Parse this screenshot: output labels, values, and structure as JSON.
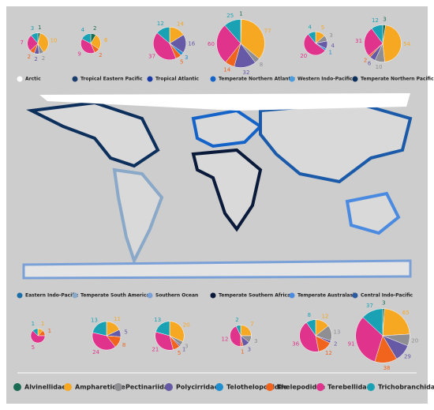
{
  "legend": {
    "names": [
      "Alvinellidae",
      "Ampharetidae",
      "Pectinariidae",
      "Polycirridae",
      "Telothelopodidae",
      "Thelepodidae",
      "Terebellidae",
      "Trichobranchidae"
    ],
    "colors": [
      "#1c6b55",
      "#f7a823",
      "#8e8e93",
      "#665aa6",
      "#1f8fd0",
      "#f0641e",
      "#e0348c",
      "#1aa2b4"
    ]
  },
  "chart_data": [
    {
      "type": "pie",
      "title": "Arctic",
      "region_color": "#ffffff",
      "values": [
        1,
        10,
        2,
        2,
        null,
        2,
        7,
        3
      ]
    },
    {
      "type": "pie",
      "title": "Tropical Eastern Pacific",
      "region_color": "#1b3d6e",
      "values": [
        2,
        6,
        null,
        null,
        null,
        2,
        9,
        4
      ]
    },
    {
      "type": "pie",
      "title": "Tropical Atlantic",
      "region_color": "#1a3aa8",
      "values": [
        null,
        14,
        null,
        16,
        3,
        5,
        37,
        12
      ]
    },
    {
      "type": "pie",
      "title": "Temperate Northern Atlantic",
      "region_color": "#1463c8",
      "values": [
        1,
        77,
        8,
        32,
        null,
        14,
        60,
        25
      ]
    },
    {
      "type": "pie",
      "title": "Western Indo-Pacific",
      "region_color": "#4a9be0",
      "values": [
        null,
        5,
        3,
        4,
        1,
        null,
        20,
        4
      ]
    },
    {
      "type": "pie",
      "title": "Temperate Northern Pacific",
      "region_color": "#0d2f5c",
      "values": [
        3,
        54,
        10,
        6,
        null,
        2,
        31,
        12
      ]
    },
    {
      "type": "pie",
      "title": "Eastern Indo-Pacific",
      "region_color": "#1a6fa8",
      "values": [
        null,
        1,
        null,
        null,
        null,
        1,
        5,
        1
      ]
    },
    {
      "type": "pie",
      "title": "Temperate South America",
      "region_color": "#8aa8c8",
      "values": [
        null,
        11,
        null,
        5,
        null,
        8,
        24,
        13
      ]
    },
    {
      "type": "pie",
      "title": "Southern Ocean",
      "region_color": "#7aa0d8",
      "values": [
        null,
        20,
        3,
        1,
        null,
        5,
        21,
        13
      ]
    },
    {
      "type": "pie",
      "title": "Temperate Southern Africa",
      "region_color": "#0a1a3a",
      "values": [
        null,
        7,
        3,
        3,
        null,
        1,
        12,
        2
      ]
    },
    {
      "type": "pie",
      "title": "Temperate Australasia",
      "region_color": "#4a8ae0",
      "values": [
        null,
        12,
        13,
        2,
        null,
        12,
        36,
        8
      ]
    },
    {
      "type": "pie",
      "title": "Central Indo-Pacific",
      "region_color": "#2a5aa0",
      "values": [
        3,
        65,
        20,
        29,
        null,
        38,
        91,
        37
      ]
    }
  ]
}
